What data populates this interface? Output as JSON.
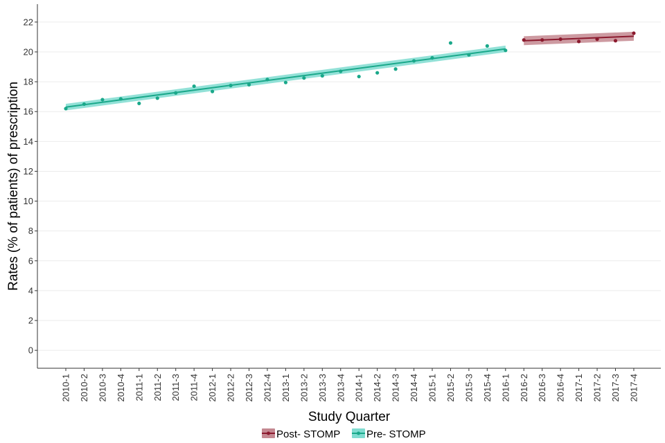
{
  "chart_data": {
    "type": "scatter",
    "xlabel": "Study Quarter",
    "ylabel": "Rates (% of patients) of prescription",
    "ylim": [
      -1.2,
      23.2
    ],
    "yticks": [
      0,
      2,
      4,
      6,
      8,
      10,
      12,
      14,
      16,
      18,
      20,
      22
    ],
    "grid": true,
    "legend_position": "bottom",
    "categories": [
      "2010-1",
      "2010-2",
      "2010-3",
      "2010-4",
      "2011-1",
      "2011-2",
      "2011-3",
      "2011-4",
      "2012-1",
      "2012-2",
      "2012-3",
      "2012-4",
      "2013-1",
      "2013-2",
      "2013-3",
      "2013-4",
      "2014-1",
      "2014-2",
      "2014-3",
      "2014-4",
      "2015-1",
      "2015-2",
      "2015-3",
      "2015-4",
      "2016-1",
      "2016-2",
      "2016-3",
      "2016-4",
      "2017-1",
      "2017-2",
      "2017-3",
      "2017-4"
    ],
    "series": [
      {
        "name": "Post- STOMP",
        "color": "#8b1a2e",
        "band_color": "#c48891",
        "x": [
          "2016-2",
          "2016-3",
          "2016-4",
          "2017-1",
          "2017-2",
          "2017-3",
          "2017-4"
        ],
        "values": [
          20.8,
          20.8,
          20.85,
          20.7,
          20.85,
          20.75,
          21.25
        ],
        "fit": {
          "start": 20.75,
          "end": 21.05,
          "band": 0.3
        }
      },
      {
        "name": "Pre- STOMP",
        "color": "#1aa88a",
        "band_color": "#7fdcd0",
        "x": [
          "2010-1",
          "2010-2",
          "2010-3",
          "2010-4",
          "2011-1",
          "2011-2",
          "2011-3",
          "2011-4",
          "2012-1",
          "2012-2",
          "2012-3",
          "2012-4",
          "2013-1",
          "2013-2",
          "2013-3",
          "2013-4",
          "2014-1",
          "2014-2",
          "2014-3",
          "2014-4",
          "2015-1",
          "2015-2",
          "2015-3",
          "2015-4",
          "2016-1"
        ],
        "values": [
          16.2,
          16.5,
          16.8,
          16.85,
          16.55,
          16.9,
          17.25,
          17.7,
          17.35,
          17.75,
          17.8,
          18.15,
          17.95,
          18.25,
          18.4,
          18.7,
          18.35,
          18.6,
          18.85,
          19.4,
          19.6,
          20.6,
          19.8,
          20.4,
          20.1
        ],
        "fit": {
          "start": 16.3,
          "end": 20.2,
          "band": 0.22
        }
      }
    ]
  }
}
